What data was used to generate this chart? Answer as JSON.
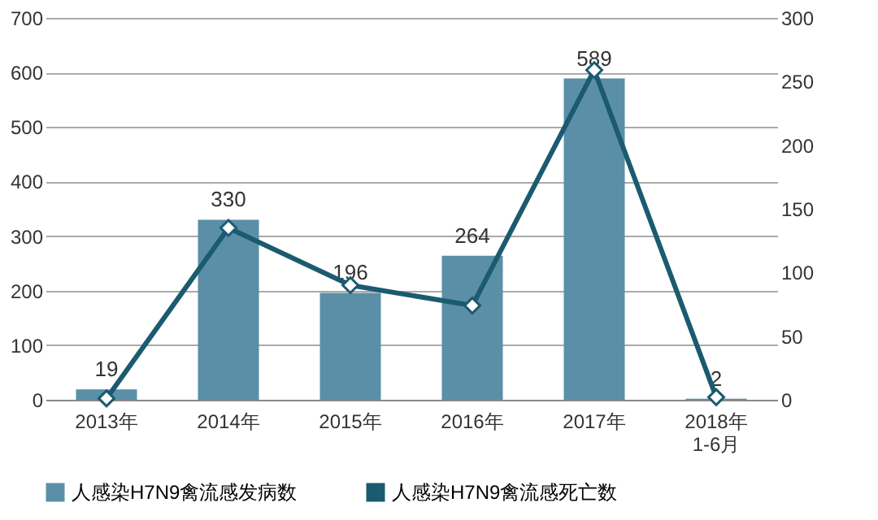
{
  "chart_data": {
    "type": "bar",
    "categories": [
      "2013年",
      "2014年",
      "2015年",
      "2016年",
      "2017年",
      "2018年\n1-6月"
    ],
    "series": [
      {
        "name": "人感染H7N9禽流感发病数",
        "color": "#5b8fa8",
        "values": [
          19,
          330,
          196,
          264,
          589,
          2
        ],
        "value_labels": [
          "19",
          "330",
          "196",
          "264",
          "589",
          "2"
        ]
      },
      {
        "name": "人感染H7N9禽流感死亡数",
        "type": "line",
        "axis": "y2",
        "color": "#1b5b70",
        "marker": "diamond",
        "values": [
          1,
          135,
          90,
          74,
          259,
          2
        ]
      }
    ],
    "ylim": [
      0,
      700
    ],
    "yticks": [
      0,
      100,
      200,
      300,
      400,
      500,
      600,
      700
    ],
    "y2lim": [
      0,
      300
    ],
    "y2ticks": [
      0,
      50,
      100,
      150,
      200,
      250,
      300
    ],
    "grid": "y",
    "legend": "bottom"
  }
}
